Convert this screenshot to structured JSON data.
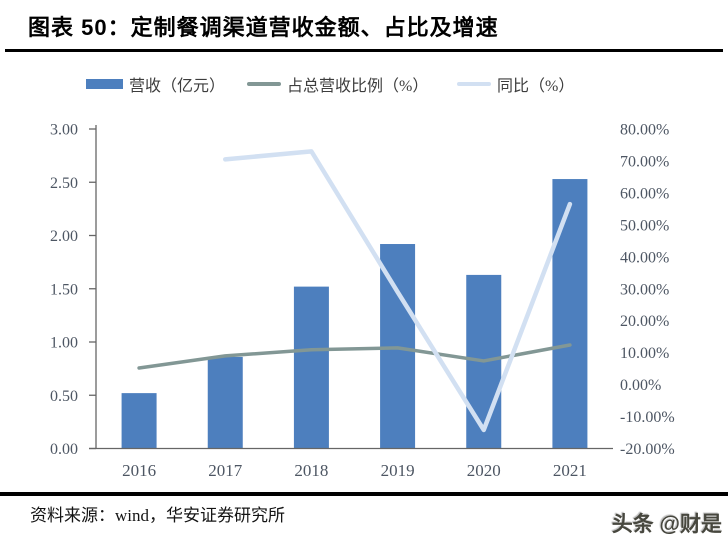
{
  "page": {
    "title": "图表 50：定制餐调渠道营收金额、占比及增速",
    "source": "资料来源：wind，华安证券研究所",
    "watermark": "头条 @财是"
  },
  "chart_data": {
    "type": "bar",
    "subtype": "combo-bar-line-dual-axis",
    "title": "定制餐调渠道营收金额、占比及增速",
    "categories": [
      "2016",
      "2017",
      "2018",
      "2019",
      "2020",
      "2021"
    ],
    "series": [
      {
        "name": "营收（亿元）",
        "type": "bar",
        "axis": "left",
        "color": "#4D7FBE",
        "values": [
          0.52,
          0.86,
          1.52,
          1.92,
          1.63,
          2.53
        ]
      },
      {
        "name": "占总营收比例（%）",
        "type": "line",
        "axis": "right",
        "color": "#829795",
        "values": [
          5.2,
          9.0,
          10.9,
          11.5,
          7.4,
          12.4
        ]
      },
      {
        "name": "同比（%）",
        "type": "line",
        "axis": "right",
        "color": "#D2E0F2",
        "values": [
          null,
          70.5,
          73.0,
          29.0,
          -14.2,
          56.5
        ]
      }
    ],
    "left_axis": {
      "min": 0,
      "max": 3,
      "tick_values": [
        0,
        0.5,
        1,
        1.5,
        2,
        2.5,
        3
      ],
      "tick_labels": [
        "0.00",
        "0.50",
        "1.00",
        "1.50",
        "2.00",
        "2.50",
        "3.00"
      ]
    },
    "right_axis": {
      "min": -20,
      "max": 80,
      "tick_values": [
        -20,
        -10,
        0,
        10,
        20,
        30,
        40,
        50,
        60,
        70,
        80
      ],
      "tick_labels": [
        "-20.00%",
        "-10.00%",
        "0.00%",
        "10.00%",
        "20.00%",
        "30.00%",
        "40.00%",
        "50.00%",
        "60.00%",
        "70.00%",
        "80.00%"
      ]
    },
    "legend_position": "top",
    "grid": false
  },
  "colors": {
    "axis_line": "#666666",
    "tick_text": "#4d5663",
    "bar": "#4D7FBE",
    "share_line": "#829795",
    "yoy_line": "#D2E0F2"
  }
}
